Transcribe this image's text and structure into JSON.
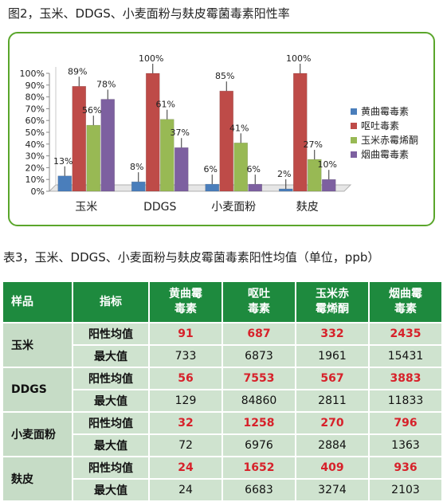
{
  "figure_title": "图2，玉米、DDGS、小麦面粉与麸皮霉菌毒素阳性率",
  "table_title": "表3，玉米、DDGS、小麦面粉与麸皮霉菌毒素阳性均值（单位，ppb）",
  "colors": {
    "frame": "#5aa62b",
    "header": "#1e8a3e",
    "cell": "#cfe3cf",
    "positive_text": "#d7212a"
  },
  "chart_data": {
    "type": "bar",
    "categories": [
      "玉米",
      "DDGS",
      "小麦面粉",
      "麸皮"
    ],
    "series": [
      {
        "name": "黄曲霉毒素",
        "color": "#4a7ebb",
        "values": [
          13,
          8,
          6,
          2
        ]
      },
      {
        "name": "呕吐毒素",
        "color": "#be4b48",
        "values": [
          89,
          100,
          85,
          100
        ]
      },
      {
        "name": "玉米赤霉烯酮",
        "color": "#98b954",
        "values": [
          56,
          61,
          41,
          27
        ]
      },
      {
        "name": "烟曲霉毒素",
        "color": "#7d60a0",
        "values": [
          78,
          37,
          6,
          10
        ]
      }
    ],
    "yticks": [
      "0%",
      "10%",
      "20%",
      "30%",
      "40%",
      "50%",
      "60%",
      "70%",
      "80%",
      "90%",
      "100%"
    ],
    "ylim": [
      0,
      100
    ],
    "legend": "right",
    "grid": false
  },
  "table": {
    "headers": {
      "sample": "样品",
      "metric": "指标",
      "col1": [
        "黄曲霉",
        "毒素"
      ],
      "col2": [
        "呕吐",
        "毒素"
      ],
      "col3": [
        "玉米赤",
        "霉烯酮"
      ],
      "col4": [
        "烟曲霉",
        "毒素"
      ]
    },
    "rows": [
      {
        "sample": "玉米",
        "pos_label": "阳性均值",
        "pos": [
          "91",
          "687",
          "332",
          "2435"
        ],
        "max_label": "最大值",
        "max": [
          "733",
          "6873",
          "1961",
          "15431"
        ]
      },
      {
        "sample": "DDGS",
        "pos_label": "阳性均值",
        "pos": [
          "56",
          "7553",
          "567",
          "3883"
        ],
        "max_label": "最大值",
        "max": [
          "129",
          "84860",
          "2811",
          "11833"
        ]
      },
      {
        "sample": "小麦面粉",
        "pos_label": "阳性均值",
        "pos": [
          "32",
          "1258",
          "270",
          "796"
        ],
        "max_label": "最大值",
        "max": [
          "72",
          "6976",
          "2884",
          "1363"
        ]
      },
      {
        "sample": "麸皮",
        "pos_label": "阳性均值",
        "pos": [
          "24",
          "1652",
          "409",
          "936"
        ],
        "max_label": "最大值",
        "max": [
          "24",
          "6683",
          "3274",
          "2103"
        ]
      }
    ]
  }
}
